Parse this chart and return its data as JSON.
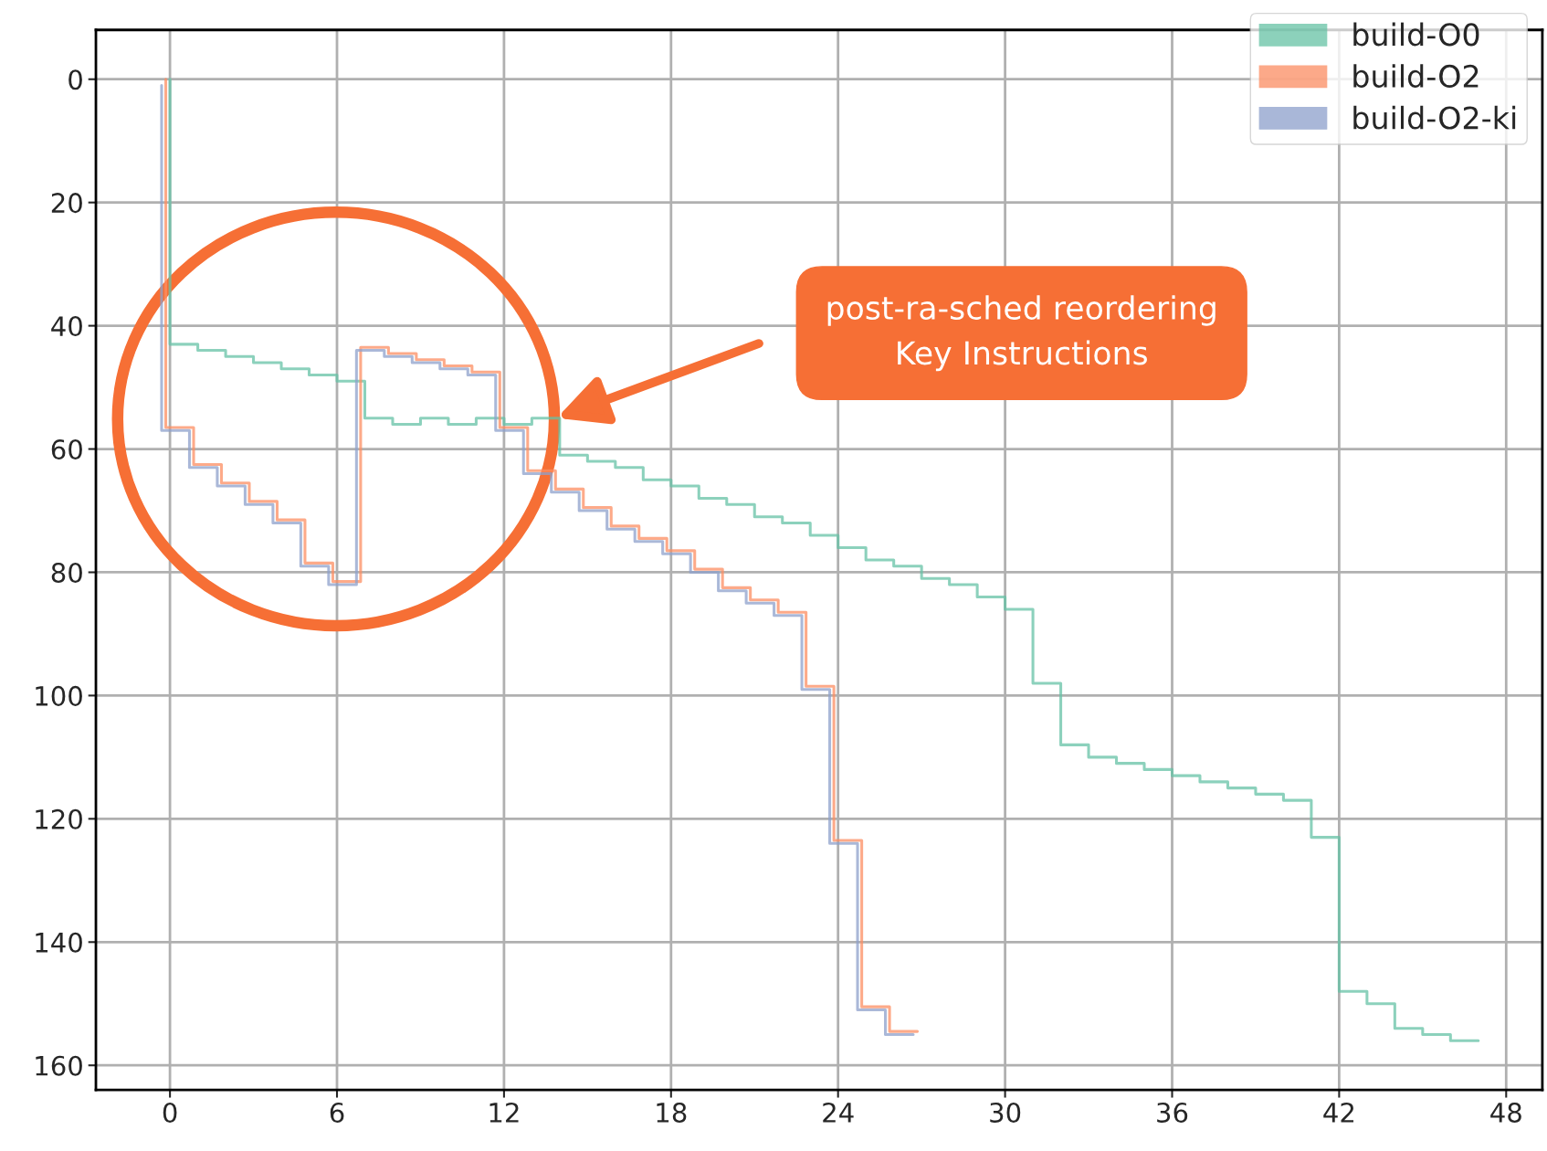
{
  "chart_data": {
    "type": "step",
    "series": [
      {
        "name": "build-O0",
        "color": "#66c2a5",
        "x": [
          0,
          1,
          2,
          3,
          4,
          5,
          6,
          7,
          8,
          9,
          10,
          11,
          12,
          13,
          14,
          15,
          16,
          17,
          18,
          19,
          20,
          21,
          22,
          23,
          24,
          25,
          26,
          27,
          28,
          29,
          30,
          31,
          32,
          33,
          34,
          35,
          36,
          37,
          38,
          39,
          40,
          41,
          42,
          43,
          44,
          45,
          46,
          47
        ],
        "values": [
          0,
          43,
          44,
          45,
          46,
          47,
          48,
          49,
          55,
          56,
          55,
          56,
          55,
          56,
          55,
          61,
          62,
          63,
          65,
          66,
          68,
          69,
          71,
          72,
          74,
          76,
          78,
          79,
          81,
          82,
          84,
          86,
          98,
          108,
          110,
          111,
          112,
          113,
          114,
          115,
          116,
          117,
          123,
          148,
          150,
          154,
          155,
          156
        ]
      },
      {
        "name": "build-O2",
        "color": "#fc8d62",
        "x": [
          -0.15,
          0.85,
          1.85,
          2.85,
          3.85,
          4.85,
          5.85,
          6.85,
          7.85,
          8.85,
          9.85,
          10.85,
          11.85,
          12.85,
          13.85,
          14.85,
          15.85,
          16.85,
          17.85,
          18.85,
          19.85,
          20.85,
          21.85,
          22.85,
          23.85,
          24.85,
          25.85,
          26.85
        ],
        "values": [
          0,
          56.5,
          62.5,
          65.5,
          68.5,
          71.5,
          78.5,
          81.5,
          43.5,
          44.5,
          45.5,
          46.5,
          47.5,
          56.5,
          63.5,
          66.5,
          69.5,
          72.5,
          74.5,
          76.5,
          79.5,
          82.5,
          84.5,
          86.5,
          98.5,
          123.5,
          150.5,
          154.5
        ]
      },
      {
        "name": "build-O2-ki",
        "color": "#8da0cb",
        "x": [
          -0.3,
          0.7,
          1.7,
          2.7,
          3.7,
          4.7,
          5.7,
          6.7,
          7.7,
          8.7,
          9.7,
          10.7,
          11.7,
          12.7,
          13.7,
          14.7,
          15.7,
          16.7,
          17.7,
          18.7,
          19.7,
          20.7,
          21.7,
          22.7,
          23.7,
          24.7,
          25.7,
          26.7
        ],
        "values": [
          1,
          57,
          63,
          66,
          69,
          72,
          79,
          82,
          44,
          45,
          46,
          47,
          48,
          57,
          64,
          67,
          70,
          73,
          75,
          77,
          80,
          83,
          85,
          87,
          99,
          124,
          151,
          155
        ]
      }
    ],
    "xlim": [
      -2.66,
      49.3
    ],
    "ylim": [
      164,
      -8
    ],
    "xticks": [
      0,
      6,
      12,
      18,
      24,
      30,
      36,
      42,
      48
    ],
    "yticks": [
      0,
      20,
      40,
      60,
      80,
      100,
      120,
      140,
      160
    ],
    "grid": true,
    "legend": "top right",
    "annotations": [
      "post-ra-sched reordering\nKey Instructions"
    ]
  }
}
